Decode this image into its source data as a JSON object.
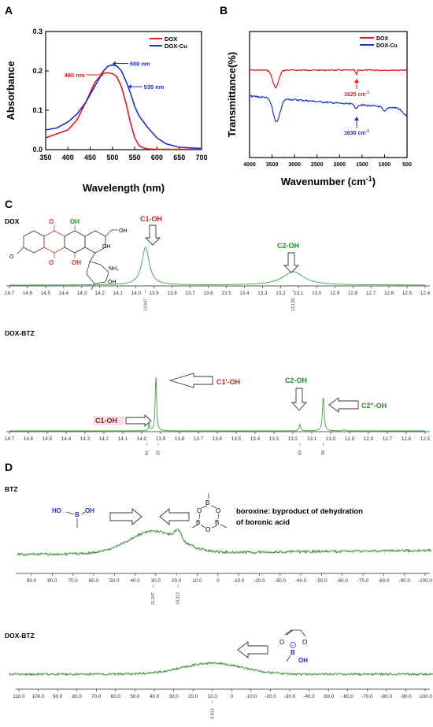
{
  "panels": [
    {
      "label": "A",
      "chart_data": {
        "type": "line",
        "xlabel": "Wavelength (nm)",
        "ylabel": "Absorbance",
        "xlim": [
          350,
          700
        ],
        "ylim": [
          0,
          0.3
        ],
        "xticks": [
          "350",
          "400",
          "450",
          "500",
          "550",
          "600",
          "650",
          "700"
        ],
        "yticks": [
          "0.0",
          "0.1",
          "0.2",
          "0.3"
        ],
        "legend": {
          "placement": "top-right",
          "entries": [
            "DOX",
            "DOX-Cu"
          ]
        },
        "series": [
          {
            "name": "DOX",
            "color": "#e8141c",
            "x": [
              350,
              375,
              400,
              420,
              440,
              460,
              475,
              480,
              490,
              500,
              510,
              520,
              530,
              540,
              550,
              560,
              570,
              580,
              600,
              650,
              700
            ],
            "y": [
              0.03,
              0.04,
              0.05,
              0.075,
              0.12,
              0.17,
              0.19,
              0.194,
              0.195,
              0.193,
              0.185,
              0.16,
              0.12,
              0.07,
              0.03,
              0.01,
              0.004,
              0.002,
              0.001,
              0.001,
              0.001
            ]
          },
          {
            "name": "DOX-Cu",
            "color": "#1c2fd0",
            "x": [
              350,
              375,
              400,
              420,
              440,
              460,
              480,
              490,
              500,
              510,
              520,
              530,
              540,
              550,
              560,
              570,
              580,
              600,
              620,
              650,
              700
            ],
            "y": [
              0.05,
              0.055,
              0.07,
              0.09,
              0.12,
              0.16,
              0.2,
              0.212,
              0.215,
              0.212,
              0.2,
              0.175,
              0.145,
              0.11,
              0.085,
              0.07,
              0.055,
              0.03,
              0.015,
              0.006,
              0.003
            ]
          }
        ],
        "annotations": [
          {
            "text": "480 nm",
            "x": 480,
            "y": 0.194,
            "color": "#e8141c"
          },
          {
            "text": "500 nm",
            "x": 500,
            "y": 0.215,
            "color": "#1c2fd0"
          },
          {
            "text": "535 nm",
            "x": 535,
            "y": 0.16,
            "color": "#1c2fd0"
          }
        ]
      }
    },
    {
      "label": "B",
      "chart_data": {
        "type": "line",
        "xlabel": "Wavenumber (cm",
        "xlabel_sup": "-1",
        "xlabel_end": ")",
        "ylabel": "Transmittance(%)",
        "xlim": [
          4000,
          500
        ],
        "xticks": [
          "4000",
          "3500",
          "3000",
          "2500",
          "2000",
          "1500",
          "1000",
          "500"
        ],
        "legend": {
          "placement": "top-right",
          "entries": [
            "DOX",
            "DOX-Cu"
          ]
        },
        "series": [
          {
            "name": "DOX",
            "color": "#e8141c"
          },
          {
            "name": "DOX-Cu",
            "color": "#1c2fd0"
          }
        ],
        "annotations": [
          {
            "text": "1625 cm",
            "sup": "-1",
            "x": 1625,
            "color": "#e8141c"
          },
          {
            "text": "1630 cm",
            "sup": "-1",
            "x": 1630,
            "color": "#1c2fd0"
          }
        ]
      }
    },
    {
      "label": "C",
      "spectra": [
        {
          "title": "DOX",
          "ticks": [
            "14.7",
            "14.6",
            "14.5",
            "14.4",
            "14.3",
            "14.2",
            "14.1",
            "14.0",
            "13.9",
            "13.8",
            "13.7",
            "13.6",
            "13.5",
            "13.4",
            "13.3",
            "13.2",
            "13.1",
            "13.0",
            "12.9",
            "12.8",
            "12.7",
            "12.6",
            "12.5",
            "12.4"
          ],
          "peak_values": [
            "13.947",
            "13.129"
          ],
          "labels": [
            {
              "text": "C1-OH",
              "color": "#d31f1f"
            },
            {
              "text": "C2-OH",
              "color": "#2a8a2a"
            }
          ],
          "molecule_text": {
            "oh": "OH",
            "nh2": "NH₂",
            "o": "O"
          }
        },
        {
          "title": "DOX-BTZ",
          "ticks": [
            "14.7",
            "14.6",
            "14.5",
            "14.4",
            "14.3",
            "14.2",
            "14.1",
            "14.0",
            "13.9",
            "13.8",
            "13.7",
            "13.6",
            "13.5",
            "13.4",
            "13.3",
            "13.2",
            "13.1",
            "13.0",
            "12.9",
            "12.8",
            "12.7",
            "12.6",
            "12.5"
          ],
          "peak_values": [
            "13.961",
            "13.925",
            "13.163",
            "13.039"
          ],
          "labels": [
            {
              "text": "C1-OH",
              "color": "#d31f1f"
            },
            {
              "text": "C1'-OH",
              "color": "#d31f1f"
            },
            {
              "text": "C2-OH",
              "color": "#2a8a2a"
            },
            {
              "text": "C2\"-OH",
              "color": "#2a8a2a"
            }
          ]
        }
      ]
    },
    {
      "label": "D",
      "spectra": [
        {
          "title": "BTZ",
          "ticks": [
            "90.0",
            "80.0",
            "70.0",
            "60.0",
            "50.0",
            "40.0",
            "30.0",
            "20.0",
            "10.0",
            "0",
            "-10.0",
            "-20.0",
            "-30.0",
            "-40.0",
            "-50.0",
            "-60.0",
            "-70.0",
            "-80.0",
            "-90.0",
            "-100.0"
          ],
          "peak_values": [
            "31.247",
            "19.312"
          ],
          "labels": [
            {
              "text": "boroxine: byproduct of dehydration",
              "color": "#000000"
            },
            {
              "text": "of boronic acid",
              "color": "#000000"
            }
          ],
          "molecule_text": {
            "ho": "HO",
            "b": "B",
            "oh": "OH",
            "o": "O"
          }
        },
        {
          "title": "DOX-BTZ",
          "ticks": [
            "110.0",
            "100.0",
            "90.0",
            "80.0",
            "70.0",
            "60.0",
            "50.0",
            "40.0",
            "30.0",
            "20.0",
            "10.0",
            "0",
            "-10.0",
            "-20.0",
            "-30.0",
            "-40.0",
            "-50.0",
            "-60.0",
            "-70.0",
            "-80.0",
            "-90.0",
            "-100.0"
          ],
          "peak_values": [
            "9.913"
          ],
          "molecule_text": {
            "o": "O",
            "b": "B",
            "oh": "OH",
            "minus": "−"
          }
        }
      ]
    }
  ]
}
